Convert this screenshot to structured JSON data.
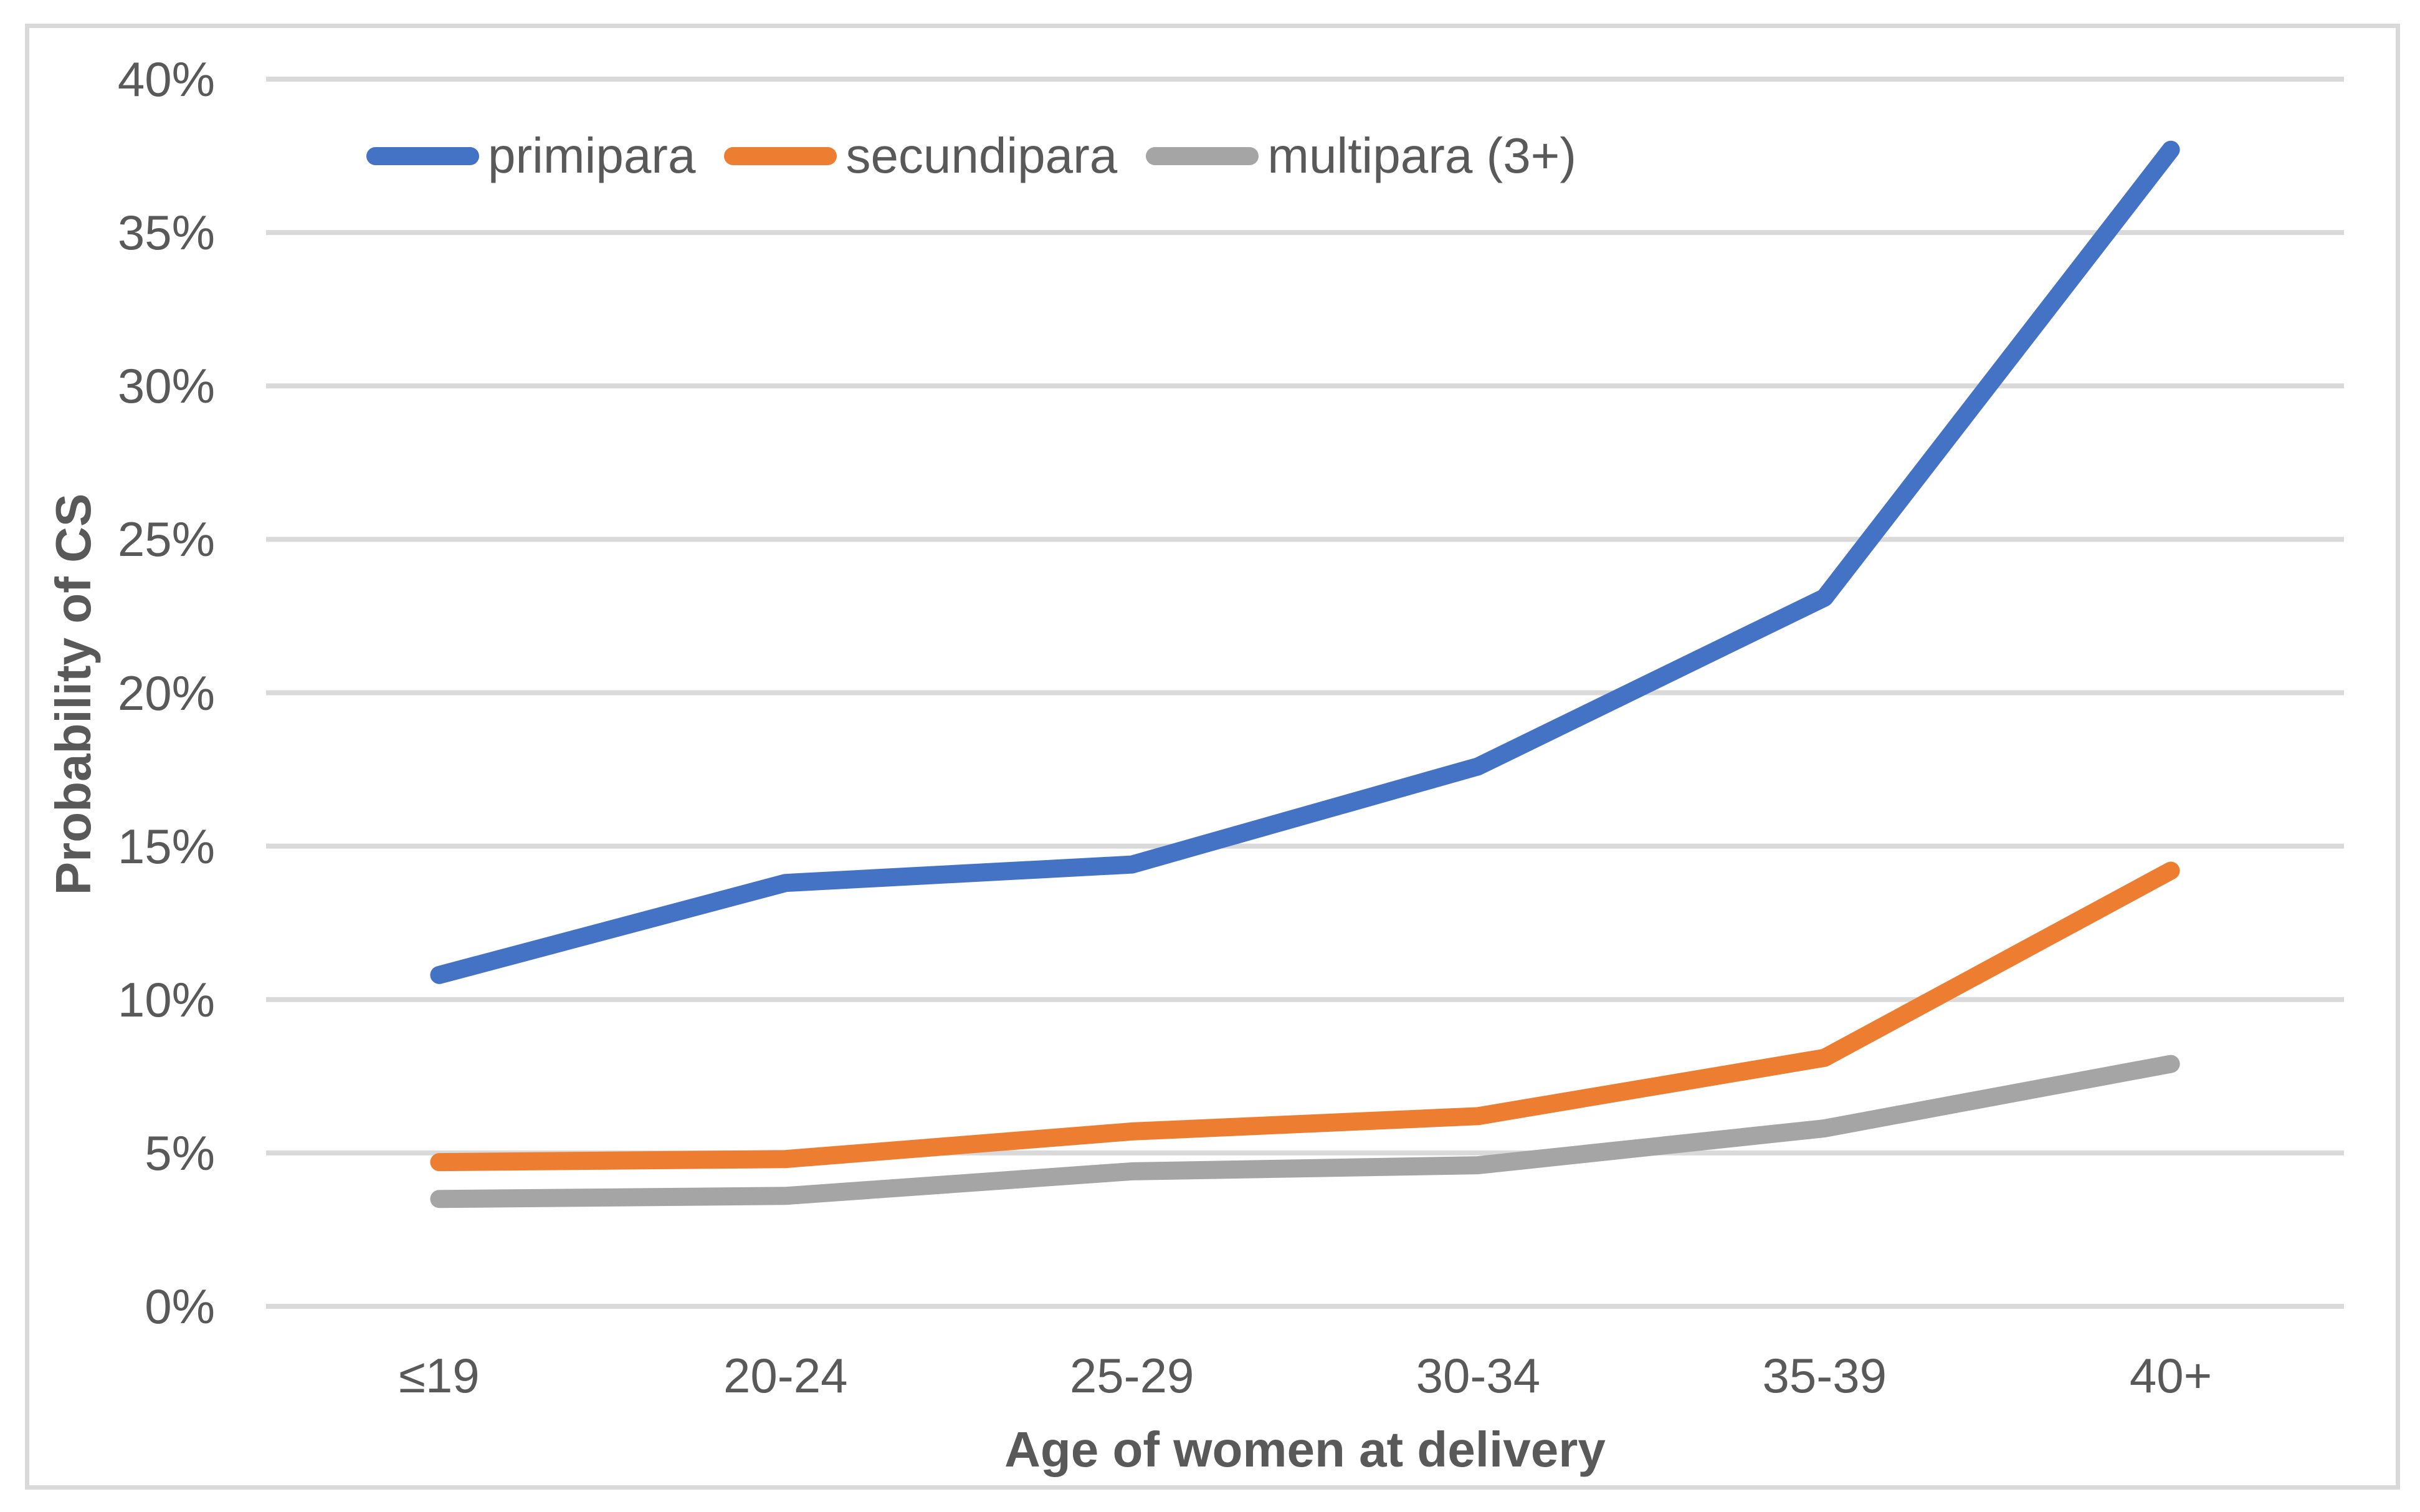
{
  "chart_data": {
    "type": "line",
    "title": "",
    "categories": [
      "≤19",
      "20-24",
      "25-29",
      "30-34",
      "35-39",
      "40+"
    ],
    "series": [
      {
        "name": "primipara",
        "color": "#4472C4",
        "values": [
          10.8,
          13.8,
          14.4,
          17.6,
          23.1,
          37.7
        ]
      },
      {
        "name": "secundipara",
        "color": "#ED7D31",
        "values": [
          4.7,
          4.8,
          5.7,
          6.2,
          8.1,
          14.2
        ]
      },
      {
        "name": "multipara (3+)",
        "color": "#A5A5A5",
        "values": [
          3.5,
          3.6,
          4.4,
          4.6,
          5.8,
          7.9
        ]
      }
    ],
    "xlabel": "Age of women at delivery",
    "ylabel": "Probability of CS",
    "ylim": [
      0,
      40
    ],
    "ytick_step": 5,
    "ytick_labels": [
      "0%",
      "5%",
      "10%",
      "15%",
      "20%",
      "25%",
      "30%",
      "35%",
      "40%"
    ],
    "grid": "horizontal-only",
    "gridline_color": "#D9D9D9",
    "frame_color": "#D9D9D9",
    "text_color": "#595959",
    "legend_position": "top-left-inside"
  }
}
